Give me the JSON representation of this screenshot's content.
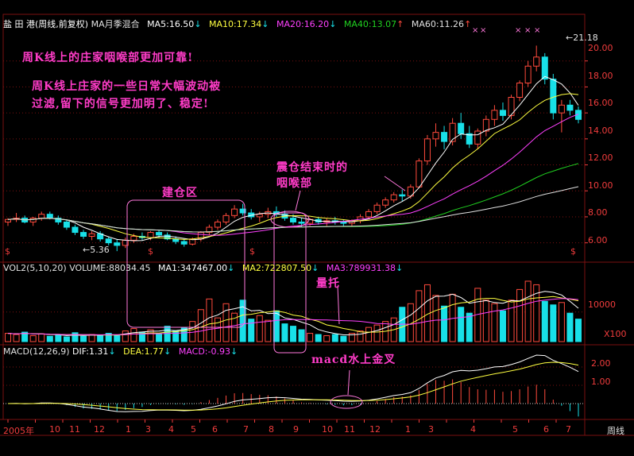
{
  "header": {
    "stock": "盐 田 港(周线,前复权)",
    "ma_mode": "MA月季混合",
    "ma5": "MA5:16.50",
    "ma10": "MA10:17.34",
    "ma20": "MA20:16.20",
    "ma40": "MA40:13.07",
    "ma60": "MA60:11.26"
  },
  "vol_header": {
    "name": "VOL2(5,10,20)",
    "volume": "VOLUME:88034.45",
    "ma1": "MA1:347467.00",
    "ma2": "MA2:722807.50",
    "ma3": "MA3:789931.38"
  },
  "macd_header": {
    "name": "MACD(12,26,9)",
    "dif": "DIF:1.31",
    "dea": "DEA:1.77",
    "macd": "MACD:-0.93"
  },
  "annotations": {
    "line1": "周K线上的庄家咽喉部更加可靠!",
    "line2": "周K线上庄家的一些日常大幅波动被",
    "line3": "过滤,留下的信号更加明了、稳定!",
    "build": "建仓区",
    "shake1": "震仓结束时的",
    "shake2": "咽喉部",
    "volume": "量托",
    "macd": "macd水上金叉"
  },
  "price_labels": {
    "high": "21.18",
    "low": "5.36"
  },
  "price_axis": [
    "20.00",
    "18.00",
    "16.00",
    "14.00",
    "12.00",
    "10.00",
    "8.00",
    "6.00"
  ],
  "vol_axis": [
    "10000",
    "X100"
  ],
  "macd_axis": [
    "2.00",
    "1.00"
  ],
  "time_axis": [
    "2005年",
    "10",
    "11",
    "12",
    "1",
    "3",
    "4",
    "5",
    "6",
    "7",
    "8",
    "9",
    "10",
    "11",
    "12",
    "1",
    "3",
    "4",
    "5",
    "6",
    "7"
  ],
  "period_label": "周线",
  "colors": {
    "up": "#ff4a3c",
    "down": "#18e0e8",
    "ma5": "#ffffff",
    "ma10": "#ffff40",
    "ma20": "#ff40ff",
    "ma40": "#20d020",
    "ma60": "#e0e0e0",
    "grid": "#7a1010"
  },
  "chart_data": {
    "type": "candlestick",
    "x_label": "周线",
    "ylim": [
      5,
      22
    ],
    "candles": [
      [
        7.6,
        7.9,
        7.3,
        7.8
      ],
      [
        7.8,
        8.3,
        7.6,
        7.9
      ],
      [
        7.9,
        8.1,
        7.5,
        7.6
      ],
      [
        7.6,
        8.0,
        7.3,
        7.9
      ],
      [
        7.9,
        8.4,
        7.7,
        8.2
      ],
      [
        8.2,
        8.4,
        7.8,
        7.9
      ],
      [
        7.9,
        8.1,
        7.4,
        7.6
      ],
      [
        7.6,
        7.8,
        7.0,
        7.2
      ],
      [
        7.2,
        7.4,
        6.6,
        6.8
      ],
      [
        6.8,
        7.0,
        6.3,
        6.5
      ],
      [
        6.5,
        6.9,
        6.2,
        6.7
      ],
      [
        6.7,
        6.9,
        6.1,
        6.3
      ],
      [
        6.3,
        6.5,
        5.8,
        6.0
      ],
      [
        6.0,
        6.3,
        5.36,
        5.8
      ],
      [
        5.8,
        6.4,
        5.6,
        6.2
      ],
      [
        6.2,
        6.7,
        6.0,
        6.5
      ],
      [
        6.5,
        6.8,
        6.2,
        6.4
      ],
      [
        6.4,
        6.9,
        6.2,
        6.8
      ],
      [
        6.8,
        7.0,
        6.4,
        6.6
      ],
      [
        6.6,
        6.8,
        6.2,
        6.3
      ],
      [
        6.3,
        6.5,
        5.9,
        6.1
      ],
      [
        6.1,
        6.3,
        5.7,
        5.9
      ],
      [
        5.9,
        6.4,
        5.8,
        6.3
      ],
      [
        6.3,
        6.9,
        6.1,
        6.8
      ],
      [
        6.8,
        7.4,
        6.6,
        7.2
      ],
      [
        7.2,
        7.8,
        7.0,
        7.6
      ],
      [
        7.6,
        8.3,
        7.4,
        8.1
      ],
      [
        8.1,
        8.9,
        7.9,
        8.6
      ],
      [
        8.6,
        9.0,
        8.1,
        8.3
      ],
      [
        8.3,
        8.6,
        7.8,
        8.0
      ],
      [
        8.0,
        8.4,
        7.6,
        8.2
      ],
      [
        8.2,
        8.7,
        7.9,
        8.4
      ],
      [
        8.4,
        8.8,
        8.0,
        8.2
      ],
      [
        8.2,
        8.5,
        7.7,
        7.9
      ],
      [
        7.9,
        8.2,
        7.4,
        7.6
      ],
      [
        7.6,
        7.9,
        7.2,
        7.5
      ],
      [
        7.5,
        7.9,
        7.3,
        7.8
      ],
      [
        7.8,
        8.0,
        7.4,
        7.6
      ],
      [
        7.6,
        7.9,
        7.3,
        7.7
      ],
      [
        7.7,
        8.0,
        7.4,
        7.6
      ],
      [
        7.6,
        7.8,
        7.3,
        7.5
      ],
      [
        7.5,
        7.8,
        7.3,
        7.7
      ],
      [
        7.7,
        8.2,
        7.5,
        8.0
      ],
      [
        8.0,
        8.6,
        7.8,
        8.4
      ],
      [
        8.4,
        9.1,
        8.2,
        8.9
      ],
      [
        8.9,
        9.5,
        8.7,
        9.3
      ],
      [
        9.3,
        9.9,
        9.1,
        9.7
      ],
      [
        9.7,
        10.1,
        9.2,
        9.6
      ],
      [
        9.6,
        10.5,
        9.4,
        10.3
      ],
      [
        10.3,
        12.5,
        10.2,
        12.3
      ],
      [
        12.3,
        14.3,
        12.0,
        14.0
      ],
      [
        14.0,
        15.2,
        13.4,
        14.5
      ],
      [
        14.5,
        15.0,
        13.2,
        13.8
      ],
      [
        13.8,
        15.6,
        13.5,
        15.2
      ],
      [
        15.2,
        16.0,
        14.0,
        14.4
      ],
      [
        14.4,
        15.0,
        13.3,
        13.6
      ],
      [
        13.6,
        14.8,
        13.2,
        14.6
      ],
      [
        14.6,
        15.8,
        14.2,
        15.5
      ],
      [
        15.5,
        16.6,
        15.0,
        16.2
      ],
      [
        16.2,
        16.8,
        15.4,
        15.8
      ],
      [
        15.8,
        17.4,
        15.5,
        17.2
      ],
      [
        17.2,
        18.5,
        16.9,
        18.3
      ],
      [
        18.3,
        20.0,
        18.0,
        19.6
      ],
      [
        19.6,
        21.18,
        19.2,
        20.3
      ],
      [
        20.3,
        20.6,
        18.2,
        18.6
      ],
      [
        18.6,
        19.0,
        15.5,
        16.0
      ],
      [
        16.0,
        17.0,
        14.5,
        16.6
      ],
      [
        16.6,
        17.0,
        15.8,
        16.2
      ],
      [
        16.2,
        16.5,
        15.2,
        15.5
      ]
    ],
    "volume": [
      14,
      12,
      16,
      10,
      13,
      9,
      11,
      8,
      15,
      9,
      12,
      10,
      14,
      11,
      18,
      22,
      16,
      20,
      13,
      26,
      18,
      24,
      34,
      54,
      72,
      40,
      64,
      48,
      70,
      38,
      44,
      36,
      52,
      30,
      26,
      20,
      14,
      12,
      10,
      12,
      9,
      14,
      18,
      24,
      28,
      34,
      40,
      58,
      64,
      86,
      96,
      78,
      60,
      80,
      58,
      48,
      90,
      70,
      64,
      52,
      70,
      88,
      102,
      96,
      68,
      62,
      66,
      48,
      38
    ]
  }
}
